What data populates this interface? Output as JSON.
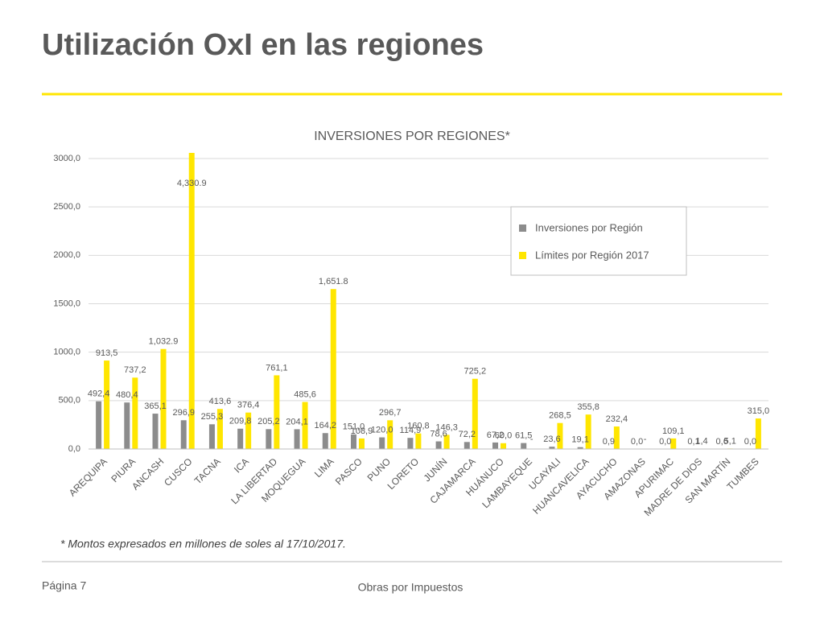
{
  "slide": {
    "title": "Utilización OxI en las regiones",
    "page": "Página 7",
    "footer": "Obras por Impuestos"
  },
  "chart_data": {
    "type": "bar",
    "title": "INVERSIONES POR REGIONES*",
    "note": "* Montos expresados en millones de soles al 17/10/2017.",
    "categories": [
      "AREQUIPA",
      "PIURA",
      "ANCASH",
      "CUSCO",
      "TACNA",
      "ICA",
      "LA LIBERTAD",
      "MOQUEGUA",
      "LIMA",
      "PASCO",
      "PUNO",
      "LORETO",
      "JUNÍN",
      "CAJAMARCA",
      "HUÁNUCO",
      "LAMBAYEQUE",
      "UCAYALI",
      "HUANCAVELICA",
      "AYACUCHO",
      "AMAZONAS",
      "APURIMAC",
      "MADRE DE DIOS",
      "SAN MARTÍN",
      "TUMBES"
    ],
    "series": [
      {
        "name": "Inversiones por Región",
        "color": "#8c8c8c",
        "values": [
          492.4,
          480.4,
          365.1,
          296.9,
          255.3,
          209.8,
          205.2,
          204.1,
          164.2,
          151.0,
          120.0,
          114.9,
          78.6,
          72.2,
          67.2,
          61.5,
          23.6,
          19.1,
          0.9,
          0.0,
          0.0,
          0.1,
          0.6,
          0.0
        ],
        "value_labels": [
          "492,4",
          "480,4",
          "365,1",
          "296,9",
          "255,3",
          "209,8",
          "205,2",
          "204,1",
          "164,2",
          "151,0",
          "120,0",
          "114,9",
          "78,6",
          "72,2",
          "67,2",
          "61,5",
          "23,6",
          "19,1",
          "0,9",
          "0,0",
          "0,0",
          "0,1",
          "0,6",
          "0,0"
        ]
      },
      {
        "name": "Límites por Región 2017",
        "color": "#ffe600",
        "values": [
          913.5,
          737.2,
          1032.9,
          4330.9,
          413.6,
          376.4,
          761.1,
          485.6,
          1651.8,
          108.9,
          296.7,
          160.8,
          146.3,
          725.2,
          60.0,
          null,
          268.5,
          355.8,
          232.4,
          null,
          109.1,
          1.4,
          5.1,
          315.0
        ],
        "value_labels": [
          "913,5",
          "737,2",
          "1,032.9",
          "4,330.9",
          "413,6",
          "376,4",
          "761,1",
          "485,6",
          "1,651.8",
          "108,9",
          "296,7",
          "160,8",
          "146,3",
          "725,2",
          "60,0",
          "-",
          "268,5",
          "355,8",
          "232,4",
          "-",
          "109,1",
          "1,4",
          "5,1",
          "315,0"
        ]
      }
    ],
    "ylim": [
      0,
      3000
    ],
    "yticks": [
      {
        "value": 0,
        "label": "0,0"
      },
      {
        "value": 500,
        "label": "500,0"
      },
      {
        "value": 1000,
        "label": "1000,0"
      },
      {
        "value": 1500,
        "label": "1500,0"
      },
      {
        "value": 2000,
        "label": "2000,0"
      },
      {
        "value": 2500,
        "label": "2500,0"
      },
      {
        "value": 3000,
        "label": "3000,0"
      }
    ],
    "grid": true,
    "legend": "upper right"
  }
}
